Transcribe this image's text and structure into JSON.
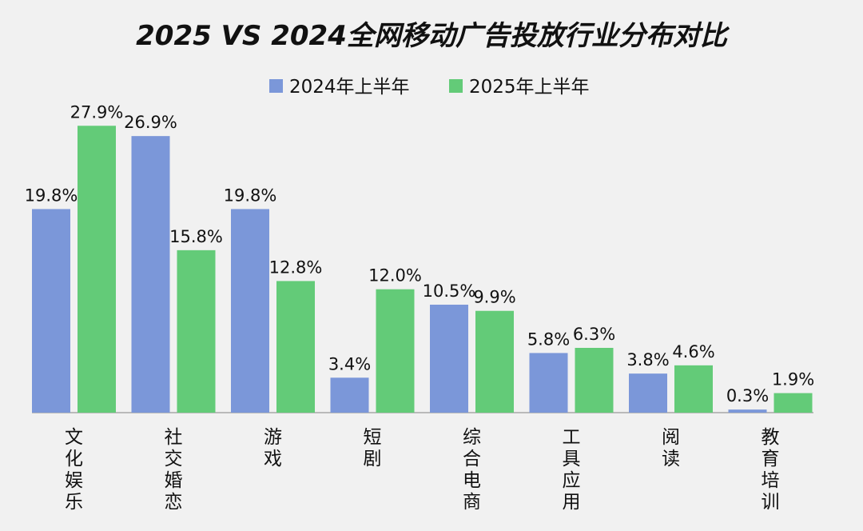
{
  "chart_data": {
    "type": "bar",
    "title": "2025 VS 2024全网移动广告投放行业分布对比",
    "categories": [
      "文化娱乐",
      "社交婚恋",
      "游戏",
      "短剧",
      "综合电商",
      "工具应用",
      "阅读",
      "教育培训"
    ],
    "series": [
      {
        "name": "2024年上半年",
        "values": [
          19.8,
          26.9,
          19.8,
          3.4,
          10.5,
          5.8,
          3.8,
          0.3
        ],
        "labels": [
          "19.8%",
          "26.9%",
          "19.8%",
          "3.4%",
          "10.5%",
          "5.8%",
          "3.8%",
          "0.3%"
        ],
        "color": "#7b97d9"
      },
      {
        "name": "2025年上半年",
        "values": [
          27.9,
          15.8,
          12.8,
          12.0,
          9.9,
          6.3,
          4.6,
          1.9
        ],
        "labels": [
          "27.9%",
          "15.8%",
          "12.8%",
          "12.0%",
          "9.9%",
          "6.3%",
          "4.6%",
          "1.9%"
        ],
        "color": "#63cb78"
      }
    ],
    "xlabel": "",
    "ylabel": "",
    "ylim": [
      0,
      28
    ],
    "grid": false,
    "legend": "top-center",
    "axis_color": "#a8a8a8",
    "text_color": "#111111"
  }
}
